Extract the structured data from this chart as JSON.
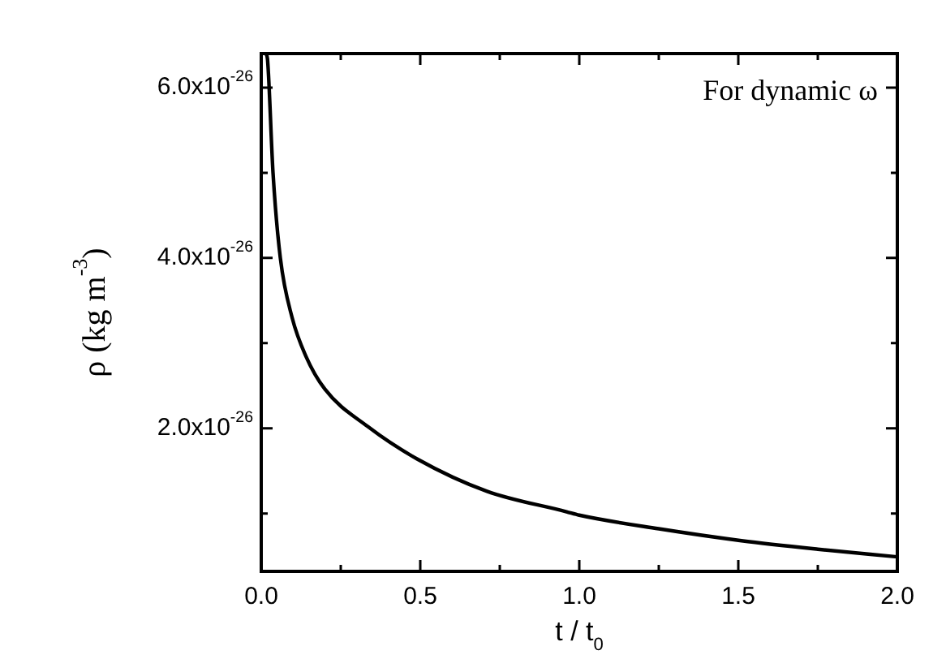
{
  "chart_data": {
    "type": "line",
    "xlabel": "t / t$_{0}$",
    "ylabel": "ρ (kg m$^{-3}$)",
    "annotations": [
      "For dynamic ω"
    ],
    "x": [
      0.015,
      0.02,
      0.037,
      0.06,
      0.097,
      0.14,
      0.2,
      0.335,
      0.49,
      0.71,
      0.96,
      1.0,
      1.25,
      1.51,
      1.75,
      2.0
    ],
    "series": [
      {
        "color": "#000000",
        "values": [
          6.4e-26,
          6.32e-26,
          5e-26,
          4e-26,
          3.3e-26,
          2.85e-26,
          2.46e-26,
          2.02e-26,
          1.64e-26,
          1.26e-26,
          1.02e-26,
          9.8e-27,
          8.2e-27,
          6.8e-27,
          5.8e-27,
          4.9e-27
        ]
      }
    ],
    "xlim": [
      0,
      2
    ],
    "ylim": [
      3.2e-27,
      6.4e-26
    ],
    "xticks": [
      {
        "value": 0,
        "label": "0.0"
      },
      {
        "value": 0.25,
        "label": null
      },
      {
        "value": 0.5,
        "label": "0.5"
      },
      {
        "value": 0.75,
        "label": null
      },
      {
        "value": 1,
        "label": "1.0"
      },
      {
        "value": 1.25,
        "label": null
      },
      {
        "value": 1.5,
        "label": "1.5"
      },
      {
        "value": 1.75,
        "label": null
      },
      {
        "value": 2,
        "label": "2.0"
      }
    ],
    "yticks": [
      {
        "value": 1e-26,
        "label": null
      },
      {
        "value": 2e-26,
        "label": "2.0x10$^{-26}$"
      },
      {
        "value": 3e-26,
        "label": null
      },
      {
        "value": 4e-26,
        "label": "4.0x10$^{-26}$"
      },
      {
        "value": 5e-26,
        "label": null
      },
      {
        "value": 6e-26,
        "label": "6.0x10$^{-26}$"
      }
    ],
    "grid": false,
    "legend": false,
    "marker": "none",
    "line_style": "solid"
  }
}
